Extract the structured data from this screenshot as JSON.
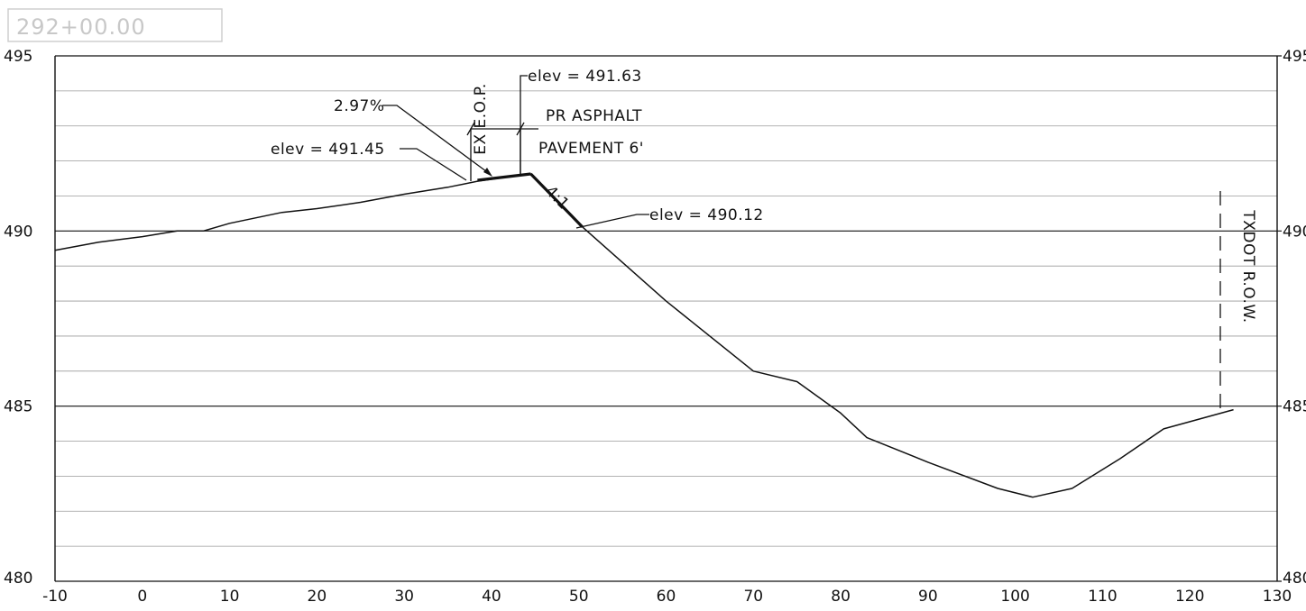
{
  "station_label": "292+00.00",
  "chart_data": {
    "type": "line",
    "title": "",
    "xlabel": "",
    "ylabel": "",
    "xlim": [
      -10,
      130
    ],
    "ylim": [
      480,
      495
    ],
    "x_ticks": [
      -10,
      0,
      10,
      20,
      30,
      40,
      50,
      60,
      70,
      80,
      90,
      100,
      110,
      120,
      130
    ],
    "y_ticks": [
      480,
      485,
      490,
      495
    ],
    "y_minor_step": 1,
    "grid": true,
    "series": [
      {
        "key": "existing_ground",
        "values_xy": [
          [
            -10,
            489.45
          ],
          [
            -5,
            489.68
          ],
          [
            0,
            489.84
          ],
          [
            4,
            490.0
          ],
          [
            7,
            490.0
          ],
          [
            10,
            490.22
          ],
          [
            16,
            490.53
          ],
          [
            20,
            490.64
          ],
          [
            25,
            490.82
          ],
          [
            30,
            491.05
          ],
          [
            35,
            491.25
          ],
          [
            38.4,
            491.42
          ],
          [
            42,
            491.55
          ],
          [
            44.5,
            491.63
          ],
          [
            50.4,
            490.12
          ],
          [
            60,
            488.0
          ],
          [
            70,
            486.0
          ],
          [
            75,
            485.7
          ],
          [
            80,
            484.8
          ],
          [
            83,
            484.1
          ],
          [
            90,
            483.4
          ],
          [
            98,
            482.65
          ],
          [
            102,
            482.4
          ],
          [
            106.5,
            482.65
          ],
          [
            112,
            483.5
          ],
          [
            117,
            484.35
          ],
          [
            125,
            484.9
          ]
        ]
      },
      {
        "key": "proposed_pavement",
        "values_xy": [
          [
            38.4,
            491.45
          ],
          [
            44.5,
            491.63
          ]
        ]
      },
      {
        "key": "proposed_side_slope",
        "values_xy": [
          [
            44.5,
            491.63
          ],
          [
            50.4,
            490.12
          ]
        ]
      }
    ],
    "annotations": {
      "elev_1": "elev = 491.63",
      "elev_2": "elev = 491.45",
      "elev_3": "elev = 490.12",
      "slope": "2.97%",
      "side_slope": "4:1",
      "pavement_1": "PR ASPHALT",
      "pavement_2": "PAVEMENT 6'",
      "eop": "EX E.O.P.",
      "row": "TXDOT R.O.W."
    }
  }
}
